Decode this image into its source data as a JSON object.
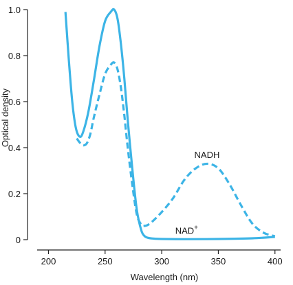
{
  "chart_data": {
    "type": "line",
    "xlabel": "Wavelength (nm)",
    "ylabel": "Optical density",
    "xlim": [
      190,
      405
    ],
    "ylim": [
      0,
      1.0
    ],
    "x_ticks": [
      200,
      250,
      300,
      350,
      400
    ],
    "x_tick_labels": [
      "200",
      "250",
      "300",
      "350",
      "400"
    ],
    "y_ticks": [
      0,
      0.2,
      0.4,
      0.6,
      0.8,
      1.0
    ],
    "y_tick_labels": [
      "0",
      "0.2",
      "0.4",
      "0.6",
      "0.8",
      "1.0"
    ],
    "grid": false,
    "color": "#3cb4e6",
    "series": [
      {
        "name": "NAD+",
        "style": "solid",
        "x": [
          215,
          218,
          221,
          224,
          227,
          230,
          235,
          240,
          245,
          250,
          255,
          258,
          261,
          264,
          267,
          270,
          274,
          278,
          282,
          285,
          288,
          292,
          300,
          320,
          350,
          380,
          400
        ],
        "y": [
          0.99,
          0.78,
          0.6,
          0.49,
          0.45,
          0.46,
          0.55,
          0.69,
          0.84,
          0.95,
          0.99,
          1.0,
          0.96,
          0.85,
          0.7,
          0.52,
          0.31,
          0.13,
          0.04,
          0.015,
          0.008,
          0.005,
          0.003,
          0.002,
          0.003,
          0.006,
          0.012
        ]
      },
      {
        "name": "NADH",
        "style": "dashed",
        "x": [
          225,
          228,
          231,
          234,
          237,
          240,
          245,
          250,
          255,
          258,
          261,
          264,
          267,
          270,
          274,
          278,
          282,
          285,
          288,
          292,
          300,
          310,
          320,
          330,
          340,
          350,
          360,
          370,
          380,
          390,
          400
        ],
        "y": [
          0.44,
          0.42,
          0.41,
          0.42,
          0.46,
          0.53,
          0.63,
          0.72,
          0.76,
          0.77,
          0.74,
          0.66,
          0.54,
          0.4,
          0.24,
          0.11,
          0.065,
          0.06,
          0.065,
          0.08,
          0.12,
          0.18,
          0.26,
          0.31,
          0.33,
          0.31,
          0.24,
          0.15,
          0.07,
          0.03,
          0.015
        ]
      }
    ],
    "annotations": [
      {
        "text": "NADH",
        "x": 340,
        "y": 0.355
      },
      {
        "text": "NAD",
        "sup": "+",
        "x": 322,
        "y": 0.025
      }
    ]
  }
}
